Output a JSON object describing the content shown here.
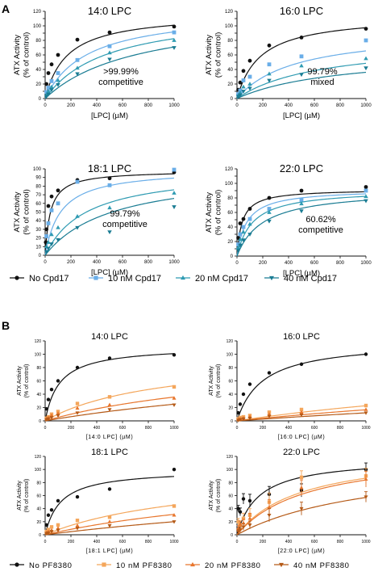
{
  "panels": [
    {
      "label": "A"
    },
    {
      "label": "B"
    }
  ],
  "palettes": {
    "A": [
      "#111111",
      "#6aaee8",
      "#2f9bb2",
      "#1a7c93"
    ],
    "B": [
      "#111111",
      "#f4a65b",
      "#e8762d",
      "#b55a17"
    ]
  },
  "legends": {
    "A": [
      {
        "label": "No Cpd17",
        "marker": "circle"
      },
      {
        "label": "10 nM Cpd17",
        "marker": "square"
      },
      {
        "label": "20 nM Cpd17",
        "marker": "triangle-up"
      },
      {
        "label": "40 nM Cpd17",
        "marker": "triangle-down"
      }
    ],
    "B": [
      {
        "label": "No PF8380",
        "marker": "circle"
      },
      {
        "label": "10 nM PF8380",
        "marker": "square"
      },
      {
        "label": "20 nM PF8380",
        "marker": "triangle-up"
      },
      {
        "label": "40 nM PF8380",
        "marker": "triangle-down"
      }
    ]
  },
  "chart_data": [
    {
      "panel": "A",
      "type": "scatter",
      "title": "14:0 LPC",
      "xlabel": "[LPC] (µM)",
      "ylabel": "ATX Activity\n(% of control)",
      "xlim": [
        0,
        1000
      ],
      "ylim": [
        0,
        120
      ],
      "xticks": [
        0,
        200,
        400,
        600,
        800,
        1000
      ],
      "yticks": [
        0,
        10,
        20,
        30,
        40,
        50,
        60,
        70,
        80,
        90,
        100,
        110,
        120
      ],
      "annotation": ">99.99%\ncompetitive",
      "series": [
        {
          "name": "No Cpd17",
          "marker": "circle",
          "x": [
            10,
            25,
            50,
            100,
            250,
            500,
            1000
          ],
          "y": [
            20,
            35,
            47,
            60,
            81,
            91,
            99
          ],
          "fit": [
            118,
            170
          ]
        },
        {
          "name": "10 nM Cpd17",
          "marker": "square",
          "x": [
            10,
            25,
            50,
            100,
            250,
            500,
            1000
          ],
          "y": [
            9,
            15,
            24,
            35,
            53,
            72,
            91
          ],
          "fit": [
            122,
            330
          ]
        },
        {
          "name": "20 nM Cpd17",
          "marker": "triangle-up",
          "x": [
            10,
            25,
            50,
            100,
            250,
            500,
            1000
          ],
          "y": [
            5,
            10,
            16,
            25,
            42,
            63,
            80
          ],
          "fit": [
            122,
            480
          ]
        },
        {
          "name": "40 nM Cpd17",
          "marker": "triangle-down",
          "x": [
            10,
            25,
            50,
            100,
            250,
            500,
            1000
          ],
          "y": [
            3,
            6,
            12,
            19,
            34,
            54,
            70
          ],
          "fit": [
            122,
            720
          ]
        }
      ]
    },
    {
      "panel": "A",
      "type": "scatter",
      "title": "16:0 LPC",
      "xlabel": "[LPC] (µM)",
      "ylabel": "ATX Activity\n(% of control)",
      "xlim": [
        0,
        1000
      ],
      "ylim": [
        0,
        120
      ],
      "xticks": [
        0,
        200,
        400,
        600,
        800,
        1000
      ],
      "yticks": [
        0,
        10,
        20,
        30,
        40,
        50,
        60,
        70,
        80,
        90,
        100,
        110,
        120
      ],
      "annotation": "99.79%\nmixed",
      "series": [
        {
          "name": "No Cpd17",
          "marker": "circle",
          "x": [
            10,
            25,
            50,
            100,
            250,
            500,
            1000
          ],
          "y": [
            12,
            22,
            38,
            52,
            73,
            84,
            96
          ],
          "fit": [
            115,
            180
          ]
        },
        {
          "name": "10 nM Cpd17",
          "marker": "square",
          "x": [
            10,
            25,
            50,
            100,
            250,
            500,
            1000
          ],
          "y": [
            6,
            11,
            25,
            30,
            47,
            58,
            80
          ],
          "fit": [
            95,
            450
          ]
        },
        {
          "name": "20 nM Cpd17",
          "marker": "triangle-up",
          "x": [
            10,
            25,
            50,
            100,
            250,
            500,
            1000
          ],
          "y": [
            4,
            8,
            16,
            20,
            34,
            45,
            55
          ],
          "fit": [
            80,
            650
          ]
        },
        {
          "name": "40 nM Cpd17",
          "marker": "triangle-down",
          "x": [
            10,
            25,
            50,
            100,
            250,
            500,
            1000
          ],
          "y": [
            3,
            5,
            10,
            14,
            25,
            33,
            42
          ],
          "fit": [
            65,
            800
          ]
        }
      ]
    },
    {
      "panel": "A",
      "type": "scatter",
      "title": "18:1 LPC",
      "xlabel": "[LPC] (µM)",
      "ylabel": "ATX Activity\n(% of control)",
      "xlim": [
        0,
        1000
      ],
      "ylim": [
        0,
        100
      ],
      "xticks": [
        0,
        200,
        400,
        600,
        800,
        1000
      ],
      "yticks": [
        0,
        10,
        20,
        30,
        40,
        50,
        60,
        70,
        80,
        90,
        100
      ],
      "annotation": "99.79%\ncompetitive",
      "series": [
        {
          "name": "No Cpd17",
          "marker": "circle",
          "x": [
            5,
            10,
            25,
            50,
            100,
            250,
            500,
            1000
          ],
          "y": [
            15,
            30,
            57,
            68,
            75,
            87,
            89,
            96
          ],
          "fit": [
            98,
            40
          ]
        },
        {
          "name": "10 nM Cpd17",
          "marker": "square",
          "x": [
            10,
            25,
            50,
            100,
            250,
            500,
            1000
          ],
          "y": [
            22,
            37,
            52,
            60,
            85,
            81,
            99
          ],
          "fit": [
            100,
            120
          ]
        },
        {
          "name": "20 nM Cpd17",
          "marker": "triangle-up",
          "x": [
            10,
            25,
            50,
            100,
            250,
            500,
            1000
          ],
          "y": [
            10,
            15,
            24,
            32,
            45,
            55,
            72
          ],
          "fit": [
            100,
            320
          ]
        },
        {
          "name": "40 nM Cpd17",
          "marker": "triangle-down",
          "x": [
            10,
            25,
            50,
            100,
            250,
            500,
            1000
          ],
          "y": [
            4,
            8,
            13,
            18,
            32,
            27,
            56
          ],
          "fit": [
            100,
            520
          ]
        }
      ]
    },
    {
      "panel": "A",
      "type": "scatter",
      "title": "22:0 LPC",
      "xlabel": "[LPC] (µM)",
      "ylabel": "ATX Activity\n(% of control)",
      "xlim": [
        0,
        1000
      ],
      "ylim": [
        0,
        120
      ],
      "xticks": [
        0,
        200,
        400,
        600,
        800,
        1000
      ],
      "yticks": [
        0,
        10,
        20,
        30,
        40,
        50,
        60,
        70,
        80,
        90,
        100,
        110,
        120
      ],
      "annotation": "60.62%\ncompetitive",
      "series": [
        {
          "name": "No Cpd17",
          "marker": "circle",
          "x": [
            10,
            25,
            50,
            100,
            250,
            500,
            1000
          ],
          "y": [
            25,
            45,
            51,
            65,
            80,
            90,
            95
          ],
          "fit": [
            92,
            40
          ]
        },
        {
          "name": "10 nM Cpd17",
          "marker": "square",
          "x": [
            10,
            25,
            50,
            100,
            250,
            500,
            1000
          ],
          "y": [
            16,
            30,
            40,
            51,
            65,
            77,
            90
          ],
          "fit": [
            92,
            75
          ]
        },
        {
          "name": "20 nM Cpd17",
          "marker": "triangle-up",
          "x": [
            10,
            25,
            50,
            100,
            250,
            500,
            1000
          ],
          "y": [
            12,
            23,
            33,
            44,
            60,
            72,
            82
          ],
          "fit": [
            92,
            120
          ]
        },
        {
          "name": "40 nM Cpd17",
          "marker": "triangle-down",
          "x": [
            10,
            25,
            50,
            100,
            250,
            500,
            1000
          ],
          "y": [
            8,
            15,
            22,
            30,
            48,
            62,
            76
          ],
          "fit": [
            92,
            200
          ]
        }
      ]
    },
    {
      "panel": "B",
      "type": "scatter",
      "title": "14:0 LPC",
      "xlabel": "[14:0 LPC] (µM)",
      "ylabel": "ATX Activity\n(% of control)",
      "xlim": [
        0,
        1000
      ],
      "ylim": [
        0,
        120
      ],
      "xticks": [
        0,
        200,
        400,
        600,
        800,
        1000
      ],
      "yticks": [
        0,
        20,
        40,
        60,
        80,
        100,
        120
      ],
      "series": [
        {
          "name": "No PF8380",
          "marker": "circle",
          "x": [
            10,
            25,
            50,
            100,
            250,
            500,
            1000
          ],
          "y": [
            18,
            32,
            47,
            60,
            80,
            94,
            99
          ],
          "fit": [
            112,
            110
          ]
        },
        {
          "name": "10 nM PF8380",
          "marker": "square",
          "x": [
            10,
            25,
            50,
            100,
            250,
            500,
            1000
          ],
          "y": [
            4,
            6,
            10,
            14,
            26,
            36,
            51
          ],
          "fit": [
            100,
            900
          ]
        },
        {
          "name": "20 nM PF8380",
          "marker": "triangle-up",
          "x": [
            10,
            25,
            50,
            100,
            250,
            500,
            1000
          ],
          "y": [
            3,
            5,
            8,
            11,
            19,
            24,
            34
          ],
          "fit": [
            100,
            1800
          ]
        },
        {
          "name": "40 nM PF8380",
          "marker": "triangle-down",
          "x": [
            10,
            25,
            50,
            100,
            250,
            500,
            1000
          ],
          "y": [
            2,
            3,
            5,
            8,
            12,
            17,
            24
          ],
          "fit": [
            100,
            3000
          ]
        }
      ]
    },
    {
      "panel": "B",
      "type": "scatter",
      "title": "16:0 LPC",
      "xlabel": "[16:0 LPC] (µM)",
      "ylabel": "ATX Activity\n(% of control)",
      "xlim": [
        0,
        1000
      ],
      "ylim": [
        0,
        120
      ],
      "xticks": [
        0,
        200,
        400,
        600,
        800,
        1000
      ],
      "yticks": [
        0,
        20,
        40,
        60,
        80,
        100,
        120
      ],
      "series": [
        {
          "name": "No PF8380",
          "marker": "circle",
          "x": [
            10,
            25,
            50,
            100,
            250,
            500,
            1000
          ],
          "y": [
            12,
            25,
            40,
            55,
            72,
            85,
            100
          ],
          "fit": [
            120,
            200
          ]
        },
        {
          "name": "10 nM PF8380",
          "marker": "square",
          "x": [
            10,
            25,
            50,
            100,
            250,
            500,
            1000
          ],
          "y": [
            3,
            5,
            6,
            8,
            13,
            17,
            23
          ],
          "fit": [
            100,
            3400
          ]
        },
        {
          "name": "20 nM PF8380",
          "marker": "triangle-up",
          "x": [
            10,
            25,
            50,
            100,
            250,
            500,
            1000
          ],
          "y": [
            2,
            3,
            4,
            6,
            10,
            13,
            17
          ],
          "fit": [
            100,
            5000
          ]
        },
        {
          "name": "40 nM PF8380",
          "marker": "triangle-down",
          "x": [
            10,
            25,
            50,
            100,
            250,
            500,
            1000
          ],
          "y": [
            1,
            2,
            3,
            4,
            7,
            9,
            12
          ],
          "fit": [
            100,
            7300
          ]
        }
      ]
    },
    {
      "panel": "B",
      "type": "scatter",
      "title": "18:1 LPC",
      "xlabel": "[18:1 LPC] (µM)",
      "ylabel": "ATX Activity\n(% of control)",
      "xlim": [
        0,
        1000
      ],
      "ylim": [
        0,
        120
      ],
      "xticks": [
        0,
        200,
        400,
        600,
        800,
        1000
      ],
      "yticks": [
        0,
        20,
        40,
        60,
        80,
        100,
        120
      ],
      "series": [
        {
          "name": "No PF8380",
          "marker": "circle",
          "x": [
            10,
            25,
            50,
            100,
            250,
            500,
            1000
          ],
          "y": [
            15,
            30,
            38,
            52,
            58,
            70,
            100
          ],
          "fit": [
            100,
            120
          ]
        },
        {
          "name": "10 nM PF8380",
          "marker": "square",
          "x": [
            10,
            25,
            50,
            100,
            250,
            500,
            1000
          ],
          "y": [
            5,
            8,
            12,
            15,
            22,
            27,
            44
          ],
          "fit": [
            100,
            1200
          ]
        },
        {
          "name": "20 nM PF8380",
          "marker": "triangle-up",
          "x": [
            10,
            25,
            50,
            100,
            250,
            500,
            1000
          ],
          "y": [
            3,
            5,
            7,
            10,
            14,
            20,
            30
          ],
          "fit": [
            100,
            2200
          ]
        },
        {
          "name": "40 nM PF8380",
          "marker": "triangle-down",
          "x": [
            10,
            25,
            50,
            100,
            250,
            500,
            1000
          ],
          "y": [
            2,
            3,
            5,
            7,
            10,
            14,
            20
          ],
          "fit": [
            100,
            4000
          ]
        }
      ]
    },
    {
      "panel": "B",
      "type": "scatter",
      "title": "22:0 LPC",
      "xlabel": "[22:0 LPC] (µM)",
      "ylabel": "ATX Activity\n(% of control)",
      "xlim": [
        0,
        1000
      ],
      "ylim": [
        0,
        120
      ],
      "xticks": [
        0,
        200,
        400,
        600,
        800,
        1000
      ],
      "yticks": [
        0,
        20,
        40,
        60,
        80,
        100,
        120
      ],
      "series": [
        {
          "name": "No PF8380",
          "marker": "circle",
          "x": [
            10,
            25,
            50,
            100,
            250,
            500,
            1000
          ],
          "y": [
            40,
            35,
            55,
            52,
            62,
            68,
            100
          ],
          "err": [
            5,
            6,
            8,
            10,
            12,
            10,
            10
          ],
          "fit": [
            118,
            170
          ]
        },
        {
          "name": "10 nM PF8380",
          "marker": "square",
          "x": [
            10,
            25,
            50,
            100,
            250,
            500,
            1000
          ],
          "y": [
            20,
            15,
            25,
            30,
            50,
            88,
            90
          ],
          "err": [
            5,
            6,
            8,
            10,
            14,
            10,
            12
          ],
          "fit": [
            130,
            500
          ]
        },
        {
          "name": "20 nM PF8380",
          "marker": "triangle-up",
          "x": [
            10,
            25,
            50,
            100,
            250,
            500,
            1000
          ],
          "y": [
            10,
            16,
            18,
            25,
            42,
            72,
            85
          ],
          "err": [
            4,
            5,
            6,
            8,
            12,
            12,
            12
          ],
          "fit": [
            130,
            550
          ]
        },
        {
          "name": "40 nM PF8380",
          "marker": "triangle-down",
          "x": [
            10,
            25,
            50,
            100,
            250,
            500,
            1000
          ],
          "y": [
            5,
            8,
            12,
            15,
            30,
            40,
            58
          ],
          "err": [
            3,
            4,
            5,
            6,
            10,
            10,
            8
          ],
          "fit": [
            120,
            1100
          ]
        }
      ]
    }
  ]
}
